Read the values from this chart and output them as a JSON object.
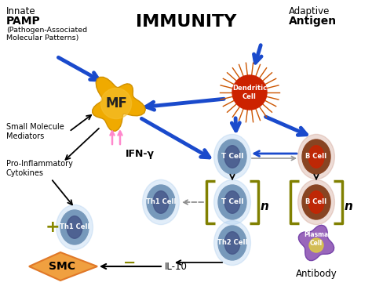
{
  "title": "IMMUNITY",
  "bg_color": "#ffffff",
  "blue_arrow_color": "#1a4acc",
  "MF_color": "#f5b800",
  "MF_label": "MF",
  "DC_core_color": "#cc2200",
  "DC_ray_color": "#cc5500",
  "DC_label": "Dendritic\nCell",
  "small_mol_label": "Small Molecule\nMediators",
  "pro_inflam_label": "Pro-Inflammatory\nCytokines",
  "IFN_label": "IFN-γ",
  "IL10_label": "IL-10",
  "TCell_label": "T Cell",
  "BCell_label": "B Cell",
  "Th1Cell_label": "Th1 Cell",
  "Th2Cell_label": "Th2 Cell",
  "PlasmaCell_label": "Plasma\nCell",
  "Antibody_label": "Antibody",
  "SMC_label": "SMC",
  "plus_label": "+",
  "minus_label": "−",
  "bracket_color": "#808000",
  "n_label": "n",
  "pink_arrow_color": "#ff88cc",
  "tcell_outer": "#aaccee",
  "tcell_mid": "#7799bb",
  "tcell_inner": "#445588",
  "bcell_outer": "#cc9988",
  "bcell_mid": "#884422",
  "bcell_inner": "#cc2200",
  "plasma_color": "#9966bb",
  "smc_color1": "#e07828",
  "smc_color2": "#f0a040"
}
